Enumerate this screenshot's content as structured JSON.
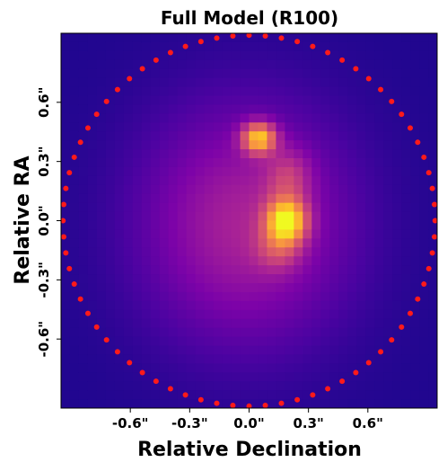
{
  "chart_data": {
    "type": "heatmap",
    "title": "Full Model (R100)",
    "xlabel": "Relative Declination",
    "ylabel": "Relative RA",
    "xlim": [
      -0.95,
      0.95
    ],
    "ylim": [
      -0.95,
      0.95
    ],
    "xticks": [
      {
        "value": -0.6,
        "label": "-0.6\""
      },
      {
        "value": -0.3,
        "label": "-0.3\""
      },
      {
        "value": 0.0,
        "label": "0.0\""
      },
      {
        "value": 0.3,
        "label": "0.3\""
      },
      {
        "value": 0.6,
        "label": "0.6\""
      }
    ],
    "yticks": [
      {
        "value": 0.6,
        "label": "0.6\""
      },
      {
        "value": 0.3,
        "label": "0.3\""
      },
      {
        "value": 0.0,
        "label": "0.0\""
      },
      {
        "value": -0.3,
        "label": "-0.3\""
      },
      {
        "value": -0.6,
        "label": "-0.6\""
      }
    ],
    "colormap": "plasma",
    "background_color": "#1a0a8c",
    "emission_components": [
      {
        "type": "halo",
        "x": -0.02,
        "y": -0.02,
        "sx": 0.37,
        "sy": 0.42,
        "amp": 0.34
      },
      {
        "type": "source",
        "x": 0.05,
        "y": 0.42,
        "sx": 0.06,
        "sy": 0.055,
        "amp": 0.68
      },
      {
        "type": "source",
        "x": 0.19,
        "y": 0.0,
        "sx": 0.07,
        "sy": 0.075,
        "amp": 0.74
      },
      {
        "type": "bridge",
        "x": 0.2,
        "y": 0.22,
        "sx": 0.08,
        "sy": 0.1,
        "amp": 0.22
      },
      {
        "type": "tail",
        "x": 0.15,
        "y": -0.14,
        "sx": 0.08,
        "sy": 0.08,
        "amp": 0.22
      }
    ],
    "mask_outline": {
      "shape": "circle",
      "center": [
        0.0,
        0.0
      ],
      "radius": 0.94,
      "marker_color": "#ff1a1a",
      "marker_style": "dots"
    }
  }
}
